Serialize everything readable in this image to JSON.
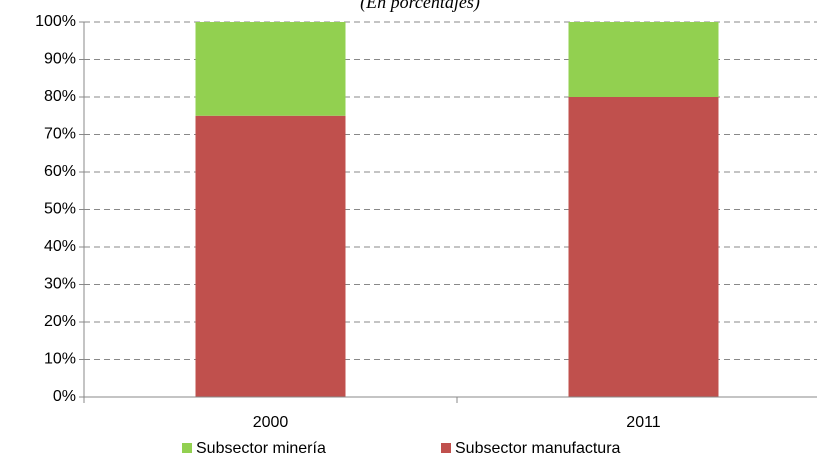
{
  "chart_data": {
    "type": "stacked_bar",
    "subtitle": "(En porcentajes)",
    "categories": [
      "2000",
      "2011"
    ],
    "series": [
      {
        "name": "Subsector minería",
        "color": "#92d050",
        "values": [
          25,
          20
        ]
      },
      {
        "name": "Subsector manufactura",
        "color": "#c0504d",
        "values": [
          75,
          80
        ]
      }
    ],
    "ylim": [
      0,
      100
    ],
    "yticks": [
      {
        "value": 0,
        "label": "0%"
      },
      {
        "value": 10,
        "label": "10%"
      },
      {
        "value": 20,
        "label": "20%"
      },
      {
        "value": 30,
        "label": "30%"
      },
      {
        "value": 40,
        "label": "40%"
      },
      {
        "value": 50,
        "label": "50%"
      },
      {
        "value": 60,
        "label": "60%"
      },
      {
        "value": 70,
        "label": "70%"
      },
      {
        "value": 80,
        "label": "80%"
      },
      {
        "value": 90,
        "label": "90%"
      },
      {
        "value": 100,
        "label": "100%"
      }
    ],
    "grid": true,
    "legend": "bottom"
  }
}
